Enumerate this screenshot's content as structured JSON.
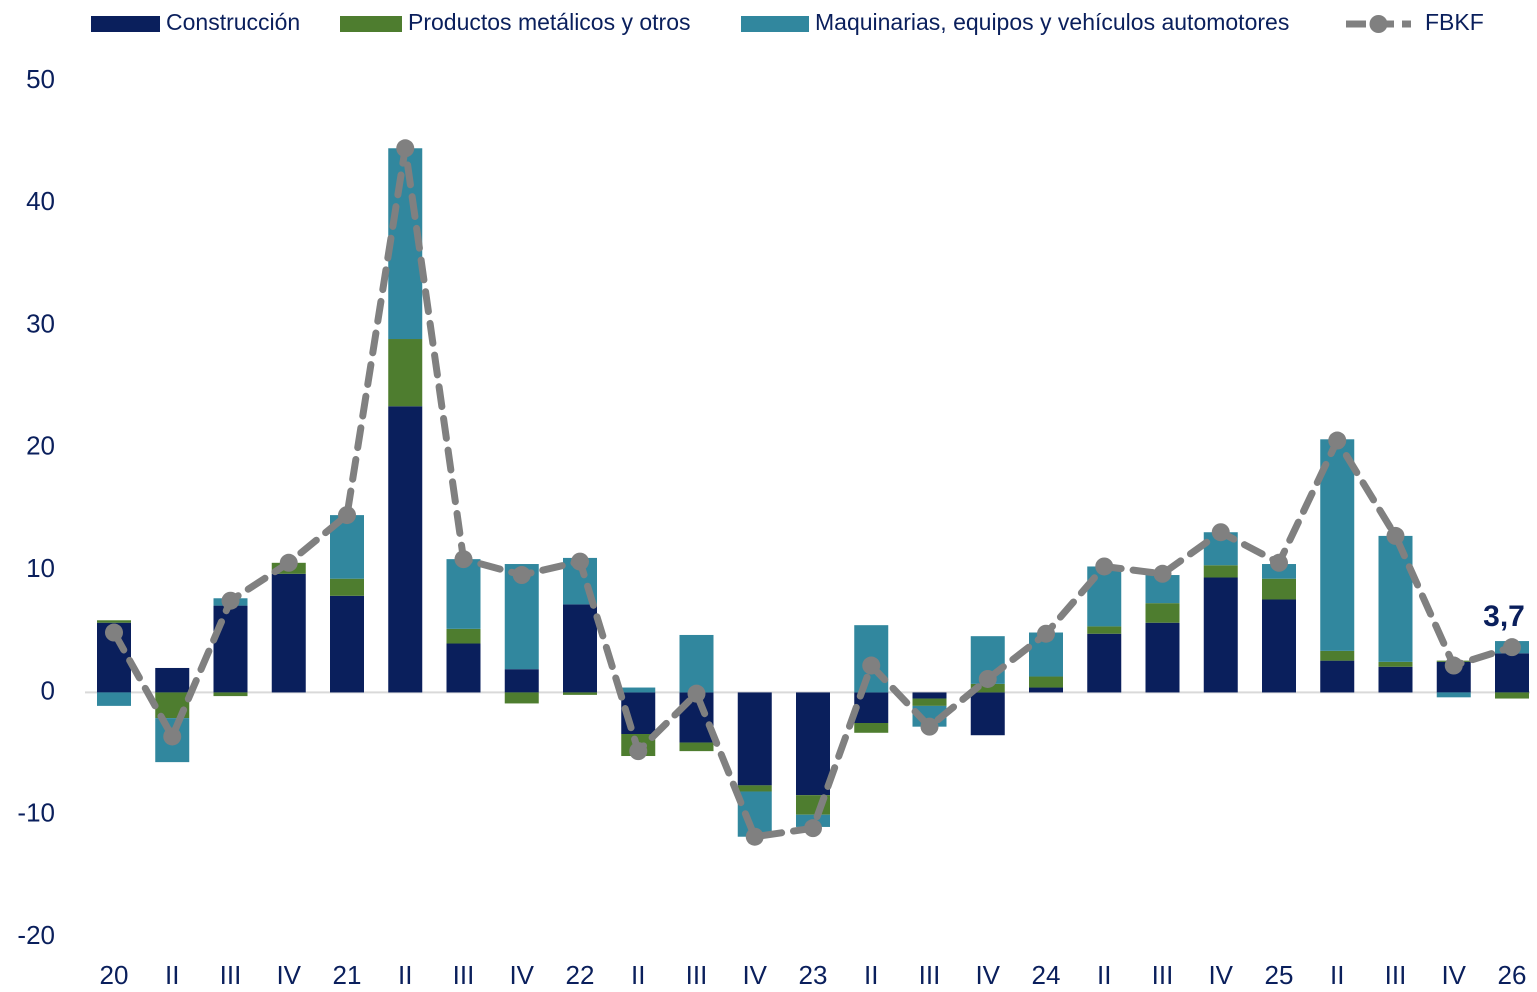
{
  "chart_data": {
    "type": "bar-line",
    "categories": [
      "20",
      "II",
      "III",
      "IV",
      "21",
      "II",
      "III",
      "IV",
      "22",
      "II",
      "III",
      "IV",
      "23",
      "II",
      "III",
      "IV",
      "24",
      "II",
      "III",
      "IV",
      "25",
      "II",
      "III",
      "IV",
      "26"
    ],
    "series": [
      {
        "name": "Construcción",
        "type": "bar",
        "color": "#0a1f5c",
        "values": [
          5.7,
          2.0,
          7.1,
          9.7,
          7.9,
          23.4,
          4.0,
          1.9,
          7.2,
          -3.4,
          -4.1,
          -7.6,
          -8.4,
          -2.5,
          -0.5,
          -3.5,
          0.4,
          4.8,
          5.7,
          9.4,
          7.6,
          2.6,
          2.1,
          2.5,
          3.2
        ]
      },
      {
        "name": "Productos metálicos y otros",
        "type": "bar",
        "color": "#4e7d2f",
        "values": [
          0.2,
          -2.1,
          -0.3,
          0.9,
          1.4,
          5.5,
          1.2,
          -0.9,
          -0.2,
          -1.8,
          -0.7,
          -0.5,
          -1.6,
          -0.8,
          -0.6,
          0.7,
          0.9,
          0.6,
          1.6,
          1.0,
          1.7,
          0.8,
          0.4,
          0.1,
          -0.5
        ]
      },
      {
        "name": "Maquinarias, equipos y vehículos automotores",
        "type": "bar",
        "color": "#31879e",
        "values": [
          -1.1,
          -3.6,
          0.6,
          0,
          5.2,
          15.6,
          5.7,
          8.6,
          3.8,
          0.4,
          4.7,
          -3.7,
          -1.0,
          5.5,
          -1.7,
          3.9,
          3.6,
          4.9,
          2.3,
          2.7,
          1.2,
          17.3,
          10.3,
          -0.4,
          1.0
        ]
      },
      {
        "name": "FBKF",
        "type": "line",
        "color": "#808080",
        "values": [
          4.9,
          -3.6,
          7.5,
          10.6,
          14.5,
          44.5,
          10.9,
          9.6,
          10.7,
          -4.8,
          -0.1,
          -11.8,
          -11.1,
          2.2,
          -2.8,
          1.1,
          4.8,
          10.3,
          9.7,
          13.1,
          10.6,
          20.6,
          12.8,
          2.2,
          3.7
        ],
        "value_labels": [
          null,
          null,
          null,
          null,
          null,
          null,
          null,
          null,
          null,
          null,
          null,
          null,
          null,
          null,
          null,
          null,
          null,
          null,
          null,
          null,
          null,
          null,
          null,
          null,
          "3,7"
        ]
      }
    ],
    "ylim": [
      -20,
      50
    ],
    "yticks": [
      -20,
      -10,
      0,
      10,
      20,
      30,
      40,
      50
    ]
  }
}
